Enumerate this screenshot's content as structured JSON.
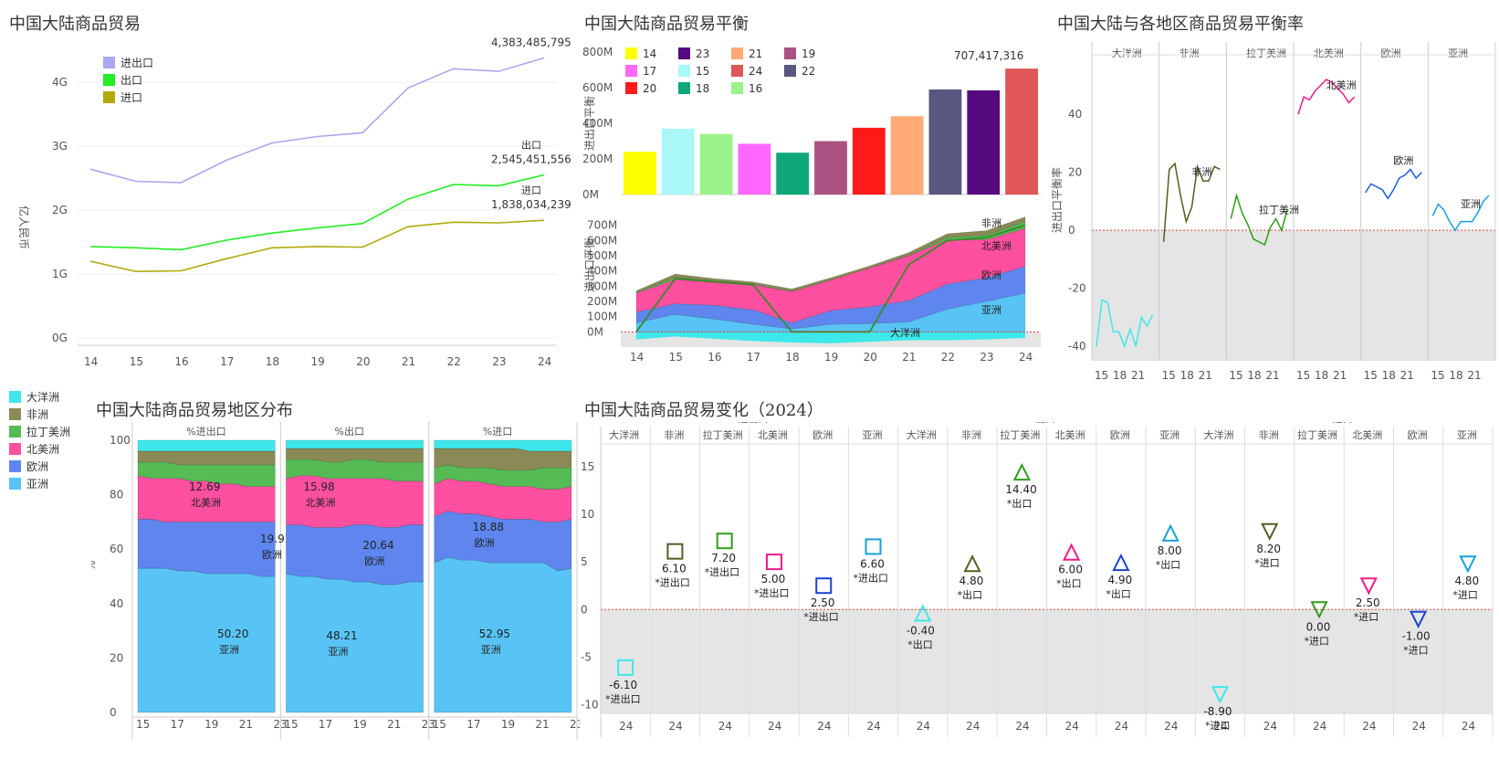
{
  "titles": {
    "trade": "中国大陆商品贸易",
    "balance": "中国大陆商品贸易平衡",
    "rate": "中国大陆与各地区商品贸易平衡率",
    "dist": "中国大陆商品贸易地区分布",
    "change": "中国大陆商品贸易变化（2024）"
  },
  "colors": {
    "total": "#a9a8f0",
    "export": "#22ee22",
    "import": "#b3a90d",
    "oceania": "#3ee8ea",
    "africa": "#8b8a57",
    "latam": "#55bb55",
    "namerica": "#ff4fa0",
    "europe": "#5e86ee",
    "asia": "#58c4f6",
    "grey": "#e5e5e5",
    "refline": "#d44"
  },
  "region_legend": [
    {
      "label": "大洋洲",
      "color": "#3ee8ea"
    },
    {
      "label": "非洲",
      "color": "#8b8a57"
    },
    {
      "label": "拉丁美洲",
      "color": "#55bb55"
    },
    {
      "label": "北美洲",
      "color": "#ff4fa0"
    },
    {
      "label": "欧洲",
      "color": "#5e86ee"
    },
    {
      "label": "亚洲",
      "color": "#58c4f6"
    }
  ],
  "chart_data": [
    {
      "id": "trade",
      "type": "line",
      "ylabel": "亿人民币",
      "x": [
        "14",
        "15",
        "16",
        "17",
        "18",
        "19",
        "20",
        "21",
        "22",
        "23",
        "24"
      ],
      "ylim": [
        0,
        4.5
      ],
      "y_ticks": [
        "0G",
        "1G",
        "2G",
        "3G",
        "4G"
      ],
      "legend": [
        "进出口",
        "出口",
        "进口"
      ],
      "series": [
        {
          "name": "进出口",
          "values": [
            2.64,
            2.45,
            2.43,
            2.78,
            3.05,
            3.15,
            3.21,
            3.91,
            4.21,
            4.17,
            4.38
          ],
          "end_value": "4,383,485,795"
        },
        {
          "name": "出口",
          "values": [
            1.43,
            1.41,
            1.38,
            1.53,
            1.64,
            1.72,
            1.79,
            2.17,
            2.4,
            2.38,
            2.55
          ],
          "end_value": "2,545,451,556"
        },
        {
          "name": "进口",
          "values": [
            1.2,
            1.04,
            1.05,
            1.24,
            1.41,
            1.43,
            1.42,
            1.74,
            1.81,
            1.8,
            1.84
          ],
          "end_value": "1,838,034,239"
        }
      ]
    },
    {
      "id": "balance-bars",
      "type": "bar",
      "ylabel": "进出口平衡",
      "categories": [
        "14",
        "15",
        "16",
        "17",
        "18",
        "19",
        "20",
        "21",
        "22",
        "23",
        "24"
      ],
      "values": [
        240,
        370,
        340,
        285,
        235,
        300,
        375,
        440,
        590,
        585,
        707
      ],
      "bar_colors": [
        "#ffff00",
        "#a9f7f7",
        "#9cf28a",
        "#ff66ff",
        "#0fa878",
        "#ac5283",
        "#ff1a1a",
        "#ffaa77",
        "#57577f",
        "#560a7f",
        "#e05555"
      ],
      "ylim": [
        0,
        800
      ],
      "y_ticks": [
        "0M",
        "200M",
        "400M",
        "600M",
        "800M"
      ],
      "legend": [
        "14",
        "17",
        "20",
        "23",
        "15",
        "18",
        "21",
        "24",
        "16",
        "19",
        "22"
      ],
      "max_label": "707,417,316"
    },
    {
      "id": "balance-area",
      "type": "area",
      "ylabel": "进出口平衡",
      "x": [
        "14",
        "15",
        "16",
        "17",
        "18",
        "19",
        "20",
        "21",
        "22",
        "23",
        "24"
      ],
      "ylim": [
        -100,
        800
      ],
      "y_ticks": [
        "0M",
        "100M",
        "200M",
        "300M",
        "400M",
        "500M",
        "600M",
        "700M"
      ],
      "stack_order": [
        "大洋洲",
        "亚洲",
        "欧洲",
        "北美洲",
        "拉丁美洲",
        "非洲"
      ],
      "series": [
        {
          "name": "大洋洲",
          "values": [
            -50,
            -30,
            -45,
            -60,
            -70,
            -75,
            -65,
            -55,
            -55,
            -50,
            -40
          ]
        },
        {
          "name": "亚洲",
          "values": [
            60,
            115,
            85,
            50,
            20,
            50,
            55,
            65,
            150,
            200,
            255
          ]
        },
        {
          "name": "欧洲",
          "values": [
            70,
            70,
            90,
            95,
            40,
            90,
            110,
            140,
            165,
            155,
            175
          ]
        },
        {
          "name": "北美洲",
          "values": [
            125,
            160,
            150,
            165,
            205,
            200,
            260,
            295,
            290,
            250,
            250
          ]
        },
        {
          "name": "拉丁美洲",
          "values": [
            5,
            15,
            10,
            3,
            5,
            0,
            -5,
            0,
            15,
            30,
            45
          ]
        },
        {
          "name": "非洲",
          "values": [
            10,
            20,
            15,
            15,
            12,
            15,
            13,
            20,
            25,
            30,
            30
          ]
        }
      ],
      "overlay_line": [
        0,
        350,
        330,
        310,
        0,
        0,
        0,
        440,
        600,
        620,
        700
      ],
      "labels": [
        "非洲",
        "北美洲",
        "欧洲",
        "亚洲",
        "大洋洲"
      ]
    },
    {
      "id": "rate",
      "type": "line",
      "ylabel": "进出口平衡率",
      "ylim": [
        -45,
        58
      ],
      "y_ticks": [
        "-40",
        "-20",
        "0",
        "20",
        "40"
      ],
      "x_ticks": [
        "15",
        "18",
        "21"
      ],
      "facets": [
        {
          "name": "大洋洲",
          "color": "#3ee8ea",
          "values": [
            -40,
            -24,
            -25,
            -35,
            -35,
            -40,
            -34,
            -40,
            -30,
            -33,
            -29
          ]
        },
        {
          "name": "非洲",
          "color": "#5b5a20",
          "values": [
            -4,
            21,
            23,
            12,
            3,
            8,
            22,
            17,
            17,
            22,
            21
          ],
          "label": "非洲"
        },
        {
          "name": "拉丁美洲",
          "color": "#2e9e1a",
          "values": [
            4,
            12,
            6,
            2,
            -3,
            -4,
            -5,
            1,
            4,
            0,
            7
          ],
          "label": "拉丁美洲"
        },
        {
          "name": "北美洲",
          "color": "#ef1a8a",
          "values": [
            40,
            46,
            45,
            48,
            50,
            52,
            51,
            49,
            47,
            44,
            46
          ],
          "label": "北美洲"
        },
        {
          "name": "欧洲",
          "color": "#1a5ee0",
          "values": [
            13,
            16,
            15,
            14,
            11,
            14,
            18,
            19,
            21,
            18,
            20
          ],
          "label": "欧洲"
        },
        {
          "name": "亚洲",
          "color": "#18a0e0",
          "values": [
            5,
            9,
            7,
            3,
            0,
            3,
            3,
            3,
            6,
            10,
            12
          ],
          "label": "亚洲"
        }
      ]
    },
    {
      "id": "dist",
      "type": "area",
      "ylabel": "%",
      "ylim": [
        0,
        100
      ],
      "y_ticks": [
        "0",
        "20",
        "40",
        "60",
        "80",
        "100"
      ],
      "x_ticks": [
        "15",
        "17",
        "19",
        "21",
        "23"
      ],
      "facets": [
        {
          "name": "%进出口",
          "asia": [
            53,
            53,
            53,
            52,
            52,
            51,
            51,
            51,
            51,
            50,
            50
          ],
          "europe": [
            71,
            71,
            70,
            70,
            70,
            70,
            70,
            70,
            70,
            70,
            70
          ],
          "namerica": [
            87,
            86,
            86,
            86,
            85,
            85,
            84,
            84,
            83,
            83,
            83
          ],
          "latam": [
            92,
            92,
            92,
            91,
            91,
            91,
            91,
            91,
            91,
            91,
            91
          ],
          "africa": [
            96,
            96,
            96,
            96,
            96,
            96,
            96,
            96,
            96,
            96,
            96
          ],
          "oceania": [
            100,
            100,
            100,
            100,
            100,
            100,
            100,
            100,
            100,
            100,
            100
          ],
          "labels": {
            "namerica": "12.69",
            "europe": "19.91",
            "asia": "50.20"
          }
        },
        {
          "name": "%出口",
          "asia": [
            51,
            50,
            50,
            49,
            49,
            48,
            48,
            47,
            47,
            48,
            48
          ],
          "europe": [
            69,
            69,
            68,
            68,
            68,
            69,
            69,
            68,
            68,
            69,
            69
          ],
          "namerica": [
            86,
            87,
            87,
            86,
            86,
            86,
            86,
            86,
            85,
            85,
            85
          ],
          "latam": [
            93,
            93,
            93,
            92,
            92,
            93,
            93,
            92,
            92,
            92,
            92
          ],
          "africa": [
            97,
            97,
            97,
            97,
            97,
            97,
            97,
            97,
            97,
            97,
            97
          ],
          "oceania": [
            100,
            100,
            100,
            100,
            100,
            100,
            100,
            100,
            100,
            100,
            100
          ],
          "labels": {
            "namerica": "15.98",
            "europe": "20.64",
            "asia": "48.21"
          }
        },
        {
          "name": "%进口",
          "asia": [
            55,
            57,
            56,
            56,
            55,
            55,
            55,
            55,
            55,
            52,
            53
          ],
          "europe": [
            72,
            74,
            73,
            73,
            72,
            71,
            71,
            71,
            70,
            70,
            71
          ],
          "namerica": [
            84,
            86,
            85,
            85,
            84,
            83,
            83,
            83,
            82,
            82,
            83
          ],
          "latam": [
            90,
            91,
            90,
            90,
            90,
            89,
            89,
            89,
            90,
            90,
            90
          ],
          "africa": [
            97,
            97,
            97,
            97,
            97,
            97,
            97,
            96,
            96,
            96,
            96
          ],
          "oceania": [
            100,
            100,
            100,
            100,
            100,
            100,
            100,
            100,
            100,
            100,
            100
          ],
          "labels": {
            "europe": "18.88",
            "asia": "52.95"
          }
        }
      ],
      "label_names": {
        "namerica": "北美洲",
        "europe": "欧洲",
        "asia": "亚洲"
      }
    },
    {
      "id": "change",
      "type": "scatter",
      "ylabel": "%",
      "ylim": [
        -11,
        17
      ],
      "y_ticks": [
        "-10",
        "-5",
        "0",
        "5",
        "10",
        "15"
      ],
      "groups": [
        "*进出口",
        "*出口",
        "*进口"
      ],
      "regions": [
        "大洋洲",
        "非洲",
        "拉丁美洲",
        "北美洲",
        "欧洲",
        "亚洲"
      ],
      "x_label": "24",
      "points": [
        {
          "group": "*进出口",
          "region": "大洋洲",
          "value": -6.1,
          "label": "-6.10",
          "shape": "square",
          "color": "#3ee8ea"
        },
        {
          "group": "*进出口",
          "region": "非洲",
          "value": 6.1,
          "label": "6.10",
          "shape": "square",
          "color": "#5b5a20"
        },
        {
          "group": "*进出口",
          "region": "拉丁美洲",
          "value": 7.2,
          "label": "7.20",
          "shape": "square",
          "color": "#2e9e1a"
        },
        {
          "group": "*进出口",
          "region": "北美洲",
          "value": 5.0,
          "label": "5.00",
          "shape": "square",
          "color": "#ef1a8a"
        },
        {
          "group": "*进出口",
          "region": "欧洲",
          "value": 2.5,
          "label": "2.50",
          "shape": "square",
          "color": "#1a44d0"
        },
        {
          "group": "*进出口",
          "region": "亚洲",
          "value": 6.6,
          "label": "6.60",
          "shape": "square",
          "color": "#18a0e0"
        },
        {
          "group": "*出口",
          "region": "大洋洲",
          "value": -0.4,
          "label": "-0.40",
          "shape": "up",
          "color": "#3ee8ea"
        },
        {
          "group": "*出口",
          "region": "非洲",
          "value": 4.8,
          "label": "4.80",
          "shape": "up",
          "color": "#5b5a20"
        },
        {
          "group": "*出口",
          "region": "拉丁美洲",
          "value": 14.4,
          "label": "14.40",
          "shape": "up",
          "color": "#2e9e1a"
        },
        {
          "group": "*出口",
          "region": "北美洲",
          "value": 6.0,
          "label": "6.00",
          "shape": "up",
          "color": "#ef1a8a"
        },
        {
          "group": "*出口",
          "region": "欧洲",
          "value": 4.9,
          "label": "4.90",
          "shape": "up",
          "color": "#1a44d0"
        },
        {
          "group": "*出口",
          "region": "亚洲",
          "value": 8.0,
          "label": "8.00",
          "shape": "up",
          "color": "#18a0e0"
        },
        {
          "group": "*进口",
          "region": "大洋洲",
          "value": -8.9,
          "label": "-8.90",
          "shape": "down",
          "color": "#3ee8ea"
        },
        {
          "group": "*进口",
          "region": "非洲",
          "value": 8.2,
          "label": "8.20",
          "shape": "down",
          "color": "#5b5a20"
        },
        {
          "group": "*进口",
          "region": "拉丁美洲",
          "value": 0.0,
          "label": "0.00",
          "shape": "down",
          "color": "#2e9e1a"
        },
        {
          "group": "*进口",
          "region": "北美洲",
          "value": 2.5,
          "label": "2.50",
          "shape": "down",
          "color": "#ef1a8a"
        },
        {
          "group": "*进口",
          "region": "欧洲",
          "value": -1.0,
          "label": "-1.00",
          "shape": "down",
          "color": "#1a44d0"
        },
        {
          "group": "*进口",
          "region": "亚洲",
          "value": 4.8,
          "label": "4.80",
          "shape": "down",
          "color": "#18a0e0"
        }
      ]
    }
  ]
}
